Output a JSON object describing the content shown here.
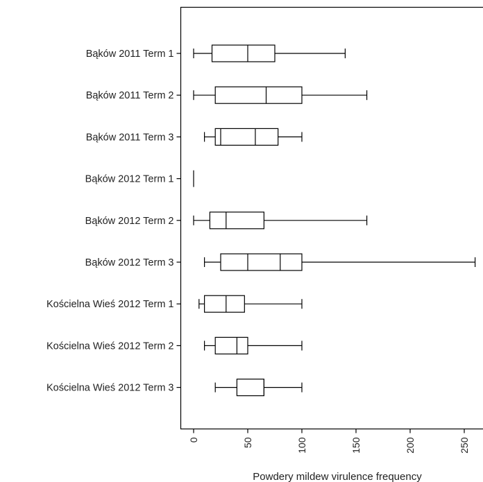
{
  "chart_data": {
    "type": "boxplot",
    "orientation": "horizontal",
    "xlabel": "Powdery mildew virulence frequency",
    "ylabel": "",
    "xlim": [
      -12,
      262
    ],
    "xticks": [
      0,
      50,
      100,
      150,
      200,
      250
    ],
    "xtick_labels": [
      "0",
      "50",
      "100",
      "150",
      "200",
      "250"
    ],
    "grid": false,
    "legend": "none",
    "categories": [
      "Bąków 2011 Term 1",
      "Bąków 2011 Term 2",
      "Bąków 2011 Term 3",
      "Bąków 2012 Term 1",
      "Bąków 2012 Term 2",
      "Bąków 2012 Term 3",
      "Kościelna Wieś 2012 Term 1",
      "Kościelna Wieś 2012 Term 2",
      "Kościelna Wieś 2012 Term 3"
    ],
    "boxes": [
      {
        "min": 0,
        "q1": 17,
        "median": 50,
        "q3": 75,
        "max": 140,
        "extra_lines": []
      },
      {
        "min": 0,
        "q1": 20,
        "median": 67,
        "q3": 100,
        "max": 160,
        "extra_lines": []
      },
      {
        "min": 10,
        "q1": 20,
        "median": 57,
        "q3": 78,
        "max": 100,
        "extra_lines": [
          25
        ]
      },
      {
        "min": 0,
        "q1": 0,
        "median": 0,
        "q3": 0,
        "max": 0,
        "extra_lines": []
      },
      {
        "min": 0,
        "q1": 15,
        "median": 30,
        "q3": 65,
        "max": 160,
        "extra_lines": []
      },
      {
        "min": 10,
        "q1": 25,
        "median": 80,
        "q3": 100,
        "max": 260,
        "extra_lines": [
          50
        ]
      },
      {
        "min": 5,
        "q1": 10,
        "median": 30,
        "q3": 47,
        "max": 100,
        "extra_lines": []
      },
      {
        "min": 10,
        "q1": 20,
        "median": 40,
        "q3": 50,
        "max": 100,
        "extra_lines": []
      },
      {
        "min": 20,
        "q1": 40,
        "median": 65,
        "q3": 65,
        "max": 100,
        "extra_lines": []
      }
    ]
  }
}
